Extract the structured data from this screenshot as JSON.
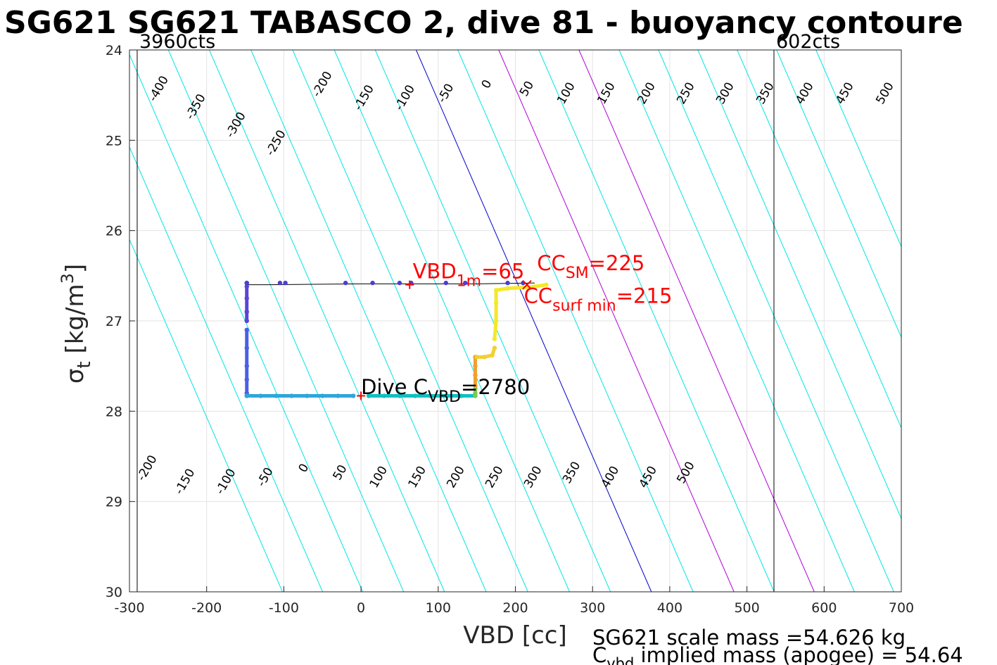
{
  "chart_data": {
    "type": "line",
    "title": "SG621 SG621 TABASCO 2, dive 81 - buoyancy contoure",
    "xlabel": "VBD [cc]",
    "ylabel_main": "σ",
    "ylabel_sub": "t",
    "ylabel_unit": "[kg/m",
    "ylabel_exp": "3",
    "ylabel_close": "]",
    "xlim": [
      -300,
      700
    ],
    "ylim": [
      24,
      30
    ],
    "y_inverted": true,
    "xticks": [
      -300,
      -200,
      -100,
      0,
      100,
      200,
      300,
      400,
      500,
      600,
      700
    ],
    "yticks": [
      24,
      25,
      26,
      27,
      28,
      29,
      30
    ],
    "grid": true,
    "vbd_limits": [
      {
        "x": -290,
        "label": "3960cts"
      },
      {
        "x": 535,
        "label": "602cts"
      }
    ],
    "contour_slope_cc_per_sigma": 50.8,
    "contour_ref_sigma": 26,
    "contours": [
      {
        "level": -450,
        "x_at_ref": -305
      },
      {
        "level": -400,
        "x_at_ref": -253
      },
      {
        "level": -350,
        "x_at_ref": -201
      },
      {
        "level": -300,
        "x_at_ref": -148
      },
      {
        "level": -250,
        "x_at_ref": -95
      },
      {
        "level": -200,
        "x_at_ref": -41
      },
      {
        "level": -150,
        "x_at_ref": 13
      },
      {
        "level": -100,
        "x_at_ref": 67
      },
      {
        "level": -50,
        "x_at_ref": 120
      },
      {
        "level": 0,
        "x_at_ref": 173
      },
      {
        "level": 50,
        "x_at_ref": 227
      },
      {
        "level": 100,
        "x_at_ref": 280
      },
      {
        "level": 150,
        "x_at_ref": 332
      },
      {
        "level": 200,
        "x_at_ref": 384
      },
      {
        "level": 250,
        "x_at_ref": 436
      },
      {
        "level": 300,
        "x_at_ref": 487
      },
      {
        "level": 350,
        "x_at_ref": 538
      },
      {
        "level": 400,
        "x_at_ref": 589
      },
      {
        "level": 450,
        "x_at_ref": 640
      },
      {
        "level": 500,
        "x_at_ref": 691
      }
    ],
    "contour_colors": {
      "zero": "#0000cc",
      "highlight": "#b000d8",
      "default": "#00e5e5"
    },
    "highlight_levels": [
      100,
      200
    ],
    "top_contour_labels": [
      {
        "text": "-400",
        "x": -258,
        "y": 24.45
      },
      {
        "text": "-350",
        "x": -210,
        "y": 24.65
      },
      {
        "text": "-300",
        "x": -158,
        "y": 24.85
      },
      {
        "text": "-250",
        "x": -106,
        "y": 25.05
      },
      {
        "text": "-200",
        "x": -46,
        "y": 24.4
      },
      {
        "text": "-150",
        "x": 8,
        "y": 24.55
      },
      {
        "text": "-100",
        "x": 61,
        "y": 24.55
      },
      {
        "text": "-50",
        "x": 114,
        "y": 24.5
      },
      {
        "text": "0",
        "x": 167,
        "y": 24.4
      },
      {
        "text": "50",
        "x": 219,
        "y": 24.45
      },
      {
        "text": "100",
        "x": 270,
        "y": 24.5
      },
      {
        "text": "150",
        "x": 322,
        "y": 24.5
      },
      {
        "text": "200",
        "x": 374,
        "y": 24.5
      },
      {
        "text": "250",
        "x": 425,
        "y": 24.5
      },
      {
        "text": "300",
        "x": 476,
        "y": 24.5
      },
      {
        "text": "350",
        "x": 528,
        "y": 24.5
      },
      {
        "text": "400",
        "x": 579,
        "y": 24.5
      },
      {
        "text": "450",
        "x": 631,
        "y": 24.5
      },
      {
        "text": "500",
        "x": 683,
        "y": 24.5
      }
    ],
    "bottom_contour_labels": [
      {
        "text": "-200",
        "x": -273,
        "y": 28.65
      },
      {
        "text": "-150",
        "x": -224,
        "y": 28.8
      },
      {
        "text": "-100",
        "x": -171,
        "y": 28.8
      },
      {
        "text": "-50",
        "x": -120,
        "y": 28.75
      },
      {
        "text": "0",
        "x": -70,
        "y": 28.65
      },
      {
        "text": "50",
        "x": -23,
        "y": 28.7
      },
      {
        "text": "100",
        "x": 27,
        "y": 28.75
      },
      {
        "text": "150",
        "x": 77,
        "y": 28.75
      },
      {
        "text": "200",
        "x": 127,
        "y": 28.75
      },
      {
        "text": "250",
        "x": 177,
        "y": 28.75
      },
      {
        "text": "300",
        "x": 227,
        "y": 28.75
      },
      {
        "text": "350",
        "x": 277,
        "y": 28.7
      },
      {
        "text": "400",
        "x": 327,
        "y": 28.75
      },
      {
        "text": "450",
        "x": 376,
        "y": 28.75
      },
      {
        "text": "500",
        "x": 425,
        "y": 28.7
      }
    ],
    "dive_line": {
      "color": "#000000",
      "points": [
        [
          -148,
          26.6
        ],
        [
          -125,
          26.6
        ],
        [
          0,
          26.59
        ],
        [
          150,
          26.59
        ],
        [
          225,
          26.58
        ]
      ]
    },
    "dive_track": {
      "segments": [
        {
          "color": "#5a44d6",
          "points": [
            [
              -148,
              26.58
            ],
            [
              -148,
              26.62
            ],
            [
              -148,
              26.75
            ],
            [
              -148,
              26.9
            ],
            [
              -148,
              27.0
            ]
          ]
        },
        {
          "color": "#4a5fe8",
          "points": [
            [
              -148,
              27.1
            ],
            [
              -148,
              27.3
            ],
            [
              -148,
              27.5
            ],
            [
              -148,
              27.65
            ],
            [
              -148,
              27.8
            ],
            [
              -148,
              27.83
            ]
          ]
        },
        {
          "color": "#2fa6d8",
          "points": [
            [
              -148,
              27.83
            ],
            [
              -130,
              27.83
            ],
            [
              -110,
              27.83
            ],
            [
              -90,
              27.83
            ],
            [
              -70,
              27.83
            ],
            [
              -50,
              27.83
            ],
            [
              -30,
              27.83
            ],
            [
              -10,
              27.83
            ]
          ]
        },
        {
          "color": "#10c0c0",
          "points": [
            [
              10,
              27.83
            ],
            [
              30,
              27.83
            ],
            [
              50,
              27.83
            ],
            [
              70,
              27.83
            ],
            [
              90,
              27.83
            ],
            [
              110,
              27.83
            ],
            [
              130,
              27.83
            ],
            [
              148,
              27.83
            ]
          ]
        },
        {
          "color": "#7cc850",
          "points": [
            [
              148,
              27.83
            ],
            [
              148,
              27.8
            ],
            [
              148,
              27.75
            ]
          ]
        },
        {
          "color": "#f0a030",
          "points": [
            [
              148,
              27.72
            ],
            [
              148,
              27.6
            ],
            [
              148,
              27.5
            ],
            [
              148,
              27.4
            ]
          ]
        },
        {
          "color": "#f3d030",
          "points": [
            [
              150,
              27.4
            ],
            [
              160,
              27.4
            ],
            [
              170,
              27.38
            ],
            [
              173,
              27.3
            ]
          ]
        },
        {
          "color": "#f5e82a",
          "points": [
            [
              173,
              27.2
            ],
            [
              175,
              27.0
            ],
            [
              175,
              26.8
            ],
            [
              175,
              26.66
            ],
            [
              190,
              26.64
            ],
            [
              210,
              26.63
            ],
            [
              225,
              26.62
            ],
            [
              240,
              26.6
            ]
          ]
        }
      ],
      "blue_dots": [
        [
          -148,
          26.58
        ],
        [
          -105,
          26.58
        ],
        [
          -98,
          26.58
        ],
        [
          -20,
          26.58
        ],
        [
          15,
          26.58
        ],
        [
          50,
          26.58
        ],
        [
          65,
          26.58
        ],
        [
          110,
          26.58
        ],
        [
          135,
          26.58
        ],
        [
          190,
          26.58
        ],
        [
          210,
          26.58
        ]
      ]
    },
    "markers": [
      {
        "type": "plus",
        "x": 63,
        "y": 26.6,
        "color": "#ff0000"
      },
      {
        "type": "plus",
        "x": 0,
        "y": 27.83,
        "color": "#ff0000"
      },
      {
        "type": "x",
        "x": 215,
        "y": 26.6,
        "color": "#ff0000"
      }
    ],
    "annotations": [
      {
        "id": "vbd1m",
        "x": 67,
        "y": 26.53,
        "color": "#ff0000",
        "size": 29,
        "base": "VBD",
        "sub": "1m",
        "tail": "=65"
      },
      {
        "id": "ccsm",
        "x": 228,
        "y": 26.44,
        "color": "#ff0000",
        "size": 29,
        "base": "CC",
        "sub": "SM",
        "tail": "=225"
      },
      {
        "id": "ccsurf",
        "x": 211,
        "y": 26.8,
        "color": "#ff0000",
        "size": 29,
        "base": "CC",
        "sub": "surf min",
        "tail": "=215"
      },
      {
        "id": "divecvbd",
        "x": 0,
        "y": 27.81,
        "color": "#000000",
        "size": 29,
        "base": "Dive C",
        "sub": "VBD",
        "tail": "=2780"
      }
    ],
    "footer": {
      "line1": "SG621 scale mass =54.626 kg",
      "line2_base": "C",
      "line2_sub": "vbd",
      "line2_tail": " implied mass (apogee) = 54.64"
    }
  }
}
